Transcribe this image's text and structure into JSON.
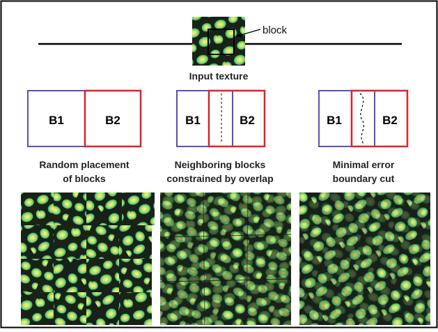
{
  "top": {
    "block_label": "block",
    "input_caption": "Input texture"
  },
  "panels": [
    {
      "left_label": "B1",
      "right_label": "B2",
      "caption_lines": [
        "Random placement",
        "of blocks"
      ],
      "mode": "random"
    },
    {
      "left_label": "B1",
      "right_label": "B2",
      "caption_lines": [
        "Neighboring blocks",
        "constrained by overlap"
      ],
      "mode": "overlap"
    },
    {
      "left_label": "B1",
      "right_label": "B2",
      "caption_lines": [
        "Minimal error",
        "boundary cut"
      ],
      "mode": "cut"
    }
  ],
  "colors": {
    "block1": "#5a4fb8",
    "block2": "#e0202a",
    "texture_dark": "#1a2218",
    "texture_cell_core": "#ecf282",
    "texture_cell_mid": "#98d24c",
    "texture_cell_edge": "#2fc6a0"
  }
}
